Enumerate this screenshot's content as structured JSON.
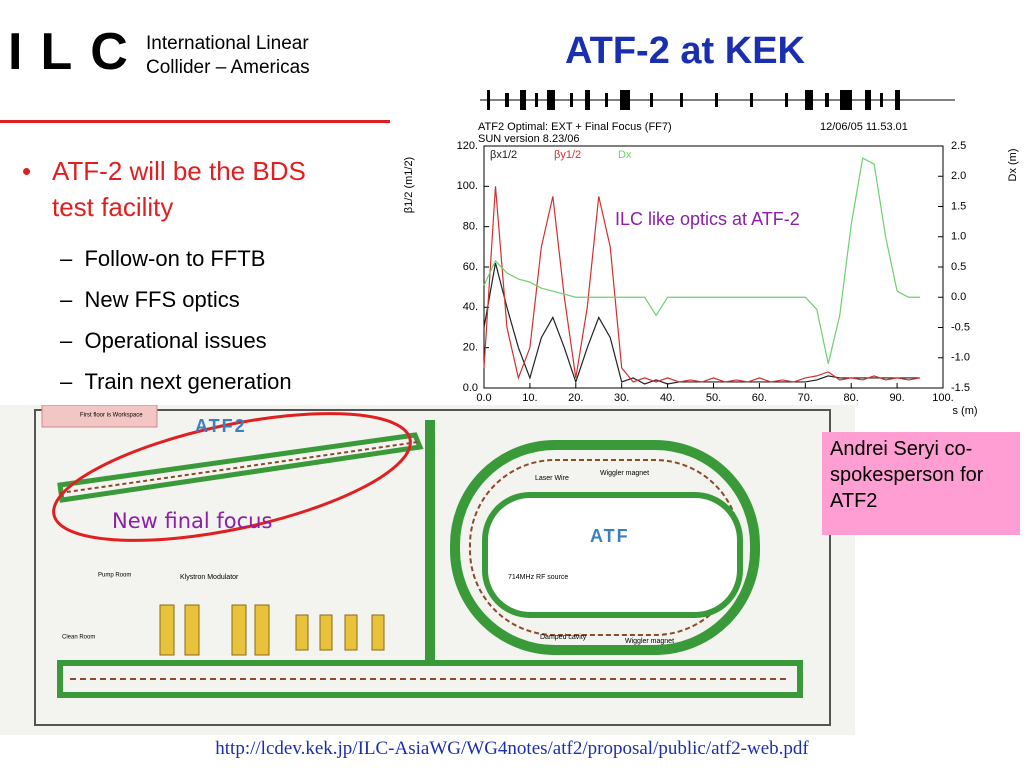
{
  "header": {
    "logo": "ILC",
    "subtitle_lines": [
      "International Linear",
      "Collider – Americas"
    ],
    "title": "ATF-2 at KEK"
  },
  "bullets": [
    {
      "text": "ATF-2 will be the BDS test facility",
      "sub": [
        "Follow-on to FFTB",
        "New FFS optics",
        "Operational issues",
        "Train next generation"
      ]
    }
  ],
  "chart_data": {
    "type": "line",
    "title": "ATF2 Optimal: EXT + Final Focus (FF7)",
    "subtitle": "SUN version 8.23/06",
    "timestamp": "12/06/05 11.53.01",
    "annotation": "ILC like optics at ATF-2",
    "x_label": "s (m)",
    "y_label": "β1/2 (m1/2)",
    "y2_label": "Dx (m)",
    "x": [
      0,
      2.5,
      5,
      7.5,
      10,
      12.5,
      15,
      17.5,
      20,
      22.5,
      25,
      27.5,
      30,
      32.5,
      35,
      37.5,
      40,
      42.5,
      45,
      47.5,
      50,
      52.5,
      55,
      57.5,
      60,
      62.5,
      65,
      67.5,
      70,
      72.5,
      75,
      77.5,
      80,
      82.5,
      85,
      87.5,
      90,
      92.5,
      95
    ],
    "series": [
      {
        "name": "βx1/2",
        "color": "#222222",
        "values": [
          30,
          62,
          40,
          20,
          5,
          25,
          35,
          20,
          3,
          20,
          35,
          25,
          3,
          5,
          2,
          4,
          2,
          3,
          3,
          3,
          3,
          3,
          3,
          3,
          3,
          3,
          3,
          3,
          3,
          4,
          6,
          5,
          5,
          5,
          5,
          5,
          5,
          5,
          5
        ]
      },
      {
        "name": "βy1/2",
        "color": "#d03030",
        "values": [
          10,
          100,
          30,
          5,
          20,
          70,
          95,
          45,
          5,
          40,
          95,
          70,
          10,
          3,
          5,
          3,
          5,
          3,
          4,
          3,
          5,
          3,
          4,
          3,
          5,
          3,
          4,
          3,
          5,
          6,
          8,
          4,
          5,
          4,
          6,
          4,
          5,
          4,
          5
        ]
      },
      {
        "name": "Dx",
        "color": "#6ed06e",
        "axis": "y2",
        "values": [
          0.2,
          0.6,
          0.4,
          0.3,
          0.25,
          0.15,
          0.1,
          0.05,
          0,
          0,
          0,
          0,
          0,
          0,
          0,
          -0.3,
          0,
          0,
          0,
          0,
          0,
          0,
          0,
          0,
          0,
          0,
          0,
          0,
          0,
          -0.2,
          -1.1,
          -0.3,
          1.2,
          2.3,
          2.2,
          1.0,
          0.1,
          0,
          0
        ]
      }
    ],
    "xlim": [
      0,
      100
    ],
    "xticks": [
      {
        "value": 0,
        "label": "0.0"
      },
      {
        "value": 10,
        "label": "10."
      },
      {
        "value": 20,
        "label": "20."
      },
      {
        "value": 30,
        "label": "30."
      },
      {
        "value": 40,
        "label": "40."
      },
      {
        "value": 50,
        "label": "50."
      },
      {
        "value": 60,
        "label": "60."
      },
      {
        "value": 70,
        "label": "70."
      },
      {
        "value": 80,
        "label": "80."
      },
      {
        "value": 90,
        "label": "90."
      },
      {
        "value": 100,
        "label": "100."
      }
    ],
    "ylim": [
      0,
      120
    ],
    "yticks": [
      {
        "value": 0,
        "label": "0.0"
      },
      {
        "value": 20,
        "label": "20."
      },
      {
        "value": 40,
        "label": "40."
      },
      {
        "value": 60,
        "label": "60."
      },
      {
        "value": 80,
        "label": "80."
      },
      {
        "value": 100,
        "label": "100."
      },
      {
        "value": 120,
        "label": "120."
      }
    ],
    "y2lim": [
      -1.5,
      2.5
    ],
    "y2ticks": [
      -1.5,
      {
        "value": -1,
        "label": "-1.0"
      },
      -0.5,
      {
        "value": 0,
        "label": "0.0"
      },
      0.5,
      {
        "value": 1,
        "label": "1.0"
      },
      1.5,
      {
        "value": 2,
        "label": "2.0"
      },
      2.5
    ]
  },
  "diagram": {
    "labels": {
      "atf2": "ATF2",
      "atf": "ATF",
      "new_ff": "New final focus",
      "workspace": "First floor is Workspace",
      "klystron": "Klystron Modulator",
      "pump": "Pump Room",
      "laser": "Laser Wire",
      "wiggler1": "Wiggler magnet",
      "rf": "714MHz RF source",
      "cavity": "Damped cavity",
      "wiggler2": "Wiggler magnet",
      "clean": "Clean Room"
    }
  },
  "note": "Andrei Seryi co-spokesperson for ATF2",
  "url": "http://lcdev.kek.jp/ILC-AsiaWG/WG4notes/atf2/proposal/public/atf2-web.pdf"
}
